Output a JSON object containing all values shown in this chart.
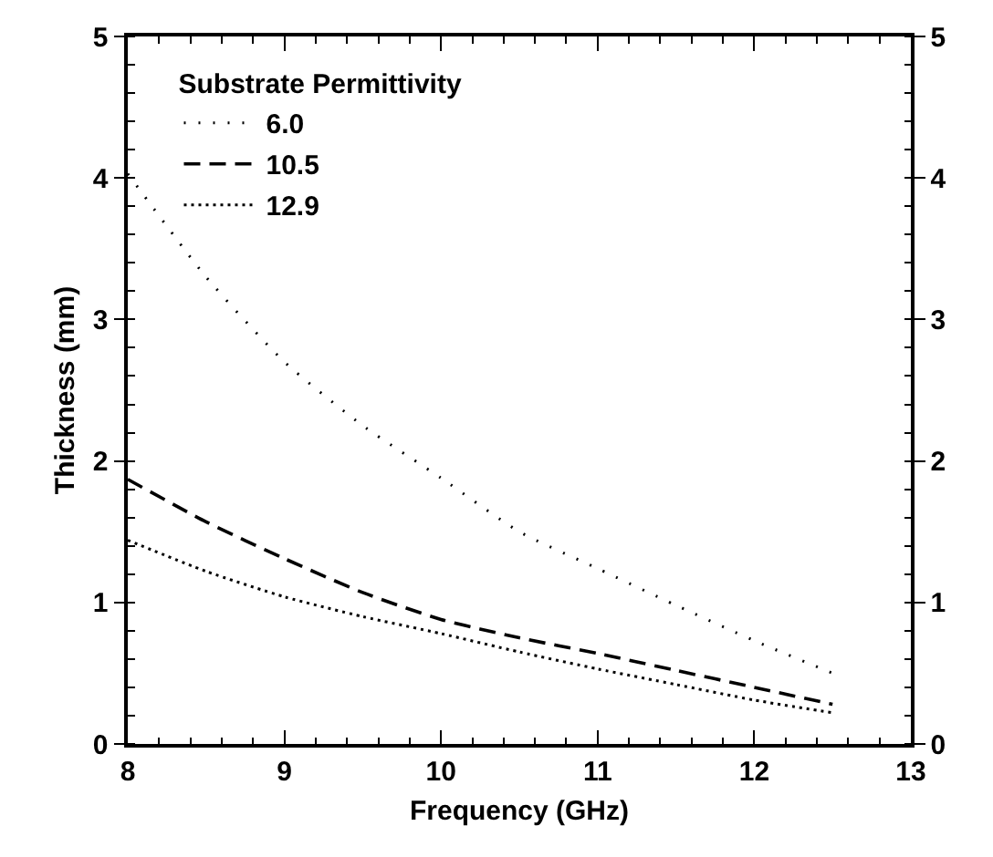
{
  "chart_data": {
    "type": "line",
    "xlabel": "Frequency (GHz)",
    "ylabel": "Thickness (mm)",
    "legend_title": "Substrate Permittivity",
    "x": [
      8,
      8.5,
      9,
      9.5,
      10,
      10.5,
      11,
      11.5,
      12,
      12.5
    ],
    "series": [
      {
        "name": "6.0",
        "color": "#000000",
        "line_style": "dotted",
        "values": [
          4.03,
          3.3,
          2.7,
          2.25,
          1.88,
          1.5,
          1.24,
          0.98,
          0.73,
          0.5
        ]
      },
      {
        "name": "10.5",
        "color": "#000000",
        "line_style": "dashed",
        "values": [
          1.87,
          1.57,
          1.31,
          1.07,
          0.88,
          0.75,
          0.64,
          0.52,
          0.4,
          0.28
        ]
      },
      {
        "name": "12.9",
        "color": "#000000",
        "line_style": "dotted",
        "values": [
          1.44,
          1.22,
          1.04,
          0.9,
          0.78,
          0.65,
          0.53,
          0.42,
          0.31,
          0.22
        ]
      }
    ],
    "xlim": [
      8,
      13
    ],
    "xticks": [
      8,
      9,
      10,
      11,
      12,
      13
    ],
    "ylim": [
      0,
      5
    ],
    "yticks": [
      0,
      1,
      2,
      3,
      4,
      5
    ],
    "y2lim": [
      0,
      5
    ],
    "y2ticks": [
      0,
      1,
      2,
      3,
      4,
      5
    ],
    "legend": "top left",
    "marker": "none"
  }
}
